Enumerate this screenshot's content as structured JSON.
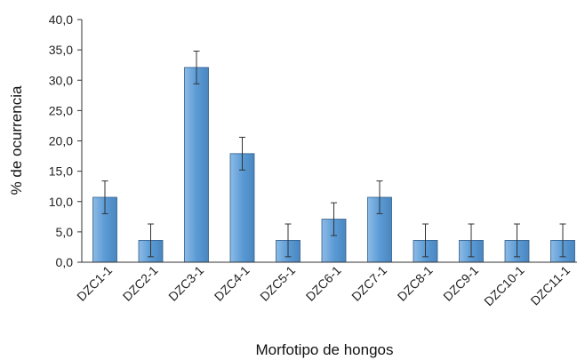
{
  "chart_data": {
    "type": "bar",
    "title": "",
    "xlabel": "Morfotipo de hongos",
    "ylabel": "% de ocurrencia",
    "ylim": [
      0,
      40
    ],
    "ytick_step": 5,
    "ytick_labels": [
      "0,0",
      "5,0",
      "10,0",
      "15,0",
      "20,0",
      "25,0",
      "30,0",
      "35,0",
      "40,0"
    ],
    "grid": false,
    "legend": "none",
    "categories": [
      "DZC1-1",
      "DZC2-1",
      "DZC3-1",
      "DZC4-1",
      "DZC5-1",
      "DZC6-1",
      "DZC7-1",
      "DZC8-1",
      "DZC9-1",
      "DZC10-1",
      "DZC11-1"
    ],
    "values": [
      10.7,
      3.6,
      32.1,
      17.9,
      3.6,
      7.1,
      10.7,
      3.6,
      3.6,
      3.6,
      3.6
    ],
    "error": [
      2.7,
      2.7,
      2.7,
      2.7,
      2.7,
      2.7,
      2.7,
      2.7,
      2.7,
      2.7,
      2.7
    ],
    "colors": {
      "bar_fill": "#5b9bd5",
      "bar_light": "#8dbbe6",
      "bar_border": "#2f5d8a",
      "axis": "#333333",
      "error_bar": "#333333"
    }
  }
}
